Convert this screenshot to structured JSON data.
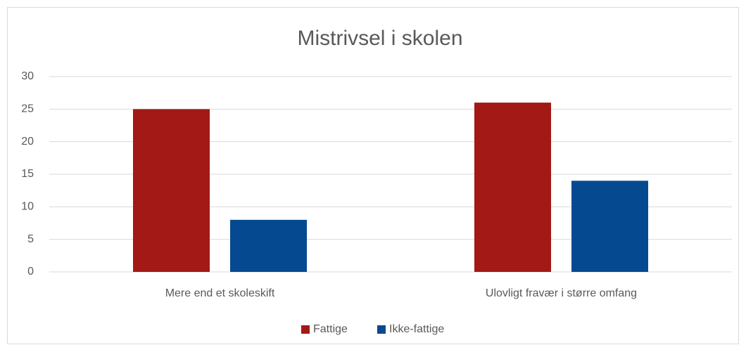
{
  "chart_data": {
    "type": "bar",
    "title": "Mistrivsel i skolen",
    "categories": [
      "Mere end et skoleskift",
      "Ulovligt fravær i større omfang"
    ],
    "series": [
      {
        "name": "Fattige",
        "color": "#a31915",
        "values": [
          25,
          26
        ]
      },
      {
        "name": "Ikke-fattige",
        "color": "#054a91",
        "values": [
          8,
          14
        ]
      }
    ],
    "ylim": [
      0,
      30
    ],
    "yticks": [
      0,
      5,
      10,
      15,
      20,
      25,
      30
    ],
    "grid": true,
    "legend": "bottom"
  }
}
